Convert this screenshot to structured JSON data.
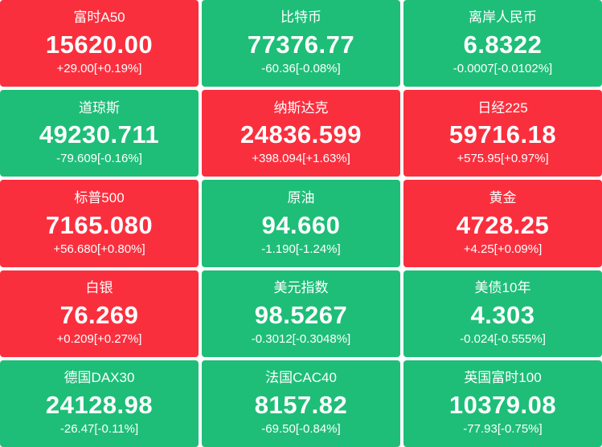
{
  "colors": {
    "up_background": "#fa2f3e",
    "down_background": "#1ebe78",
    "text": "#ffffff",
    "page_background": "#ffffff"
  },
  "board": {
    "columns": 3,
    "rows": 5
  },
  "tiles": [
    {
      "name": "富时A50",
      "value": "15620.00",
      "change": "+29.00[+0.19%]",
      "direction": "up"
    },
    {
      "name": "比特币",
      "value": "77376.77",
      "change": "-60.36[-0.08%]",
      "direction": "down"
    },
    {
      "name": "离岸人民币",
      "value": "6.8322",
      "change": "-0.0007[-0.0102%]",
      "direction": "down"
    },
    {
      "name": "道琼斯",
      "value": "49230.711",
      "change": "-79.609[-0.16%]",
      "direction": "down"
    },
    {
      "name": "纳斯达克",
      "value": "24836.599",
      "change": "+398.094[+1.63%]",
      "direction": "up"
    },
    {
      "name": "日经225",
      "value": "59716.18",
      "change": "+575.95[+0.97%]",
      "direction": "up"
    },
    {
      "name": "标普500",
      "value": "7165.080",
      "change": "+56.680[+0.80%]",
      "direction": "up"
    },
    {
      "name": "原油",
      "value": "94.660",
      "change": "-1.190[-1.24%]",
      "direction": "down"
    },
    {
      "name": "黄金",
      "value": "4728.25",
      "change": "+4.25[+0.09%]",
      "direction": "up"
    },
    {
      "name": "白银",
      "value": "76.269",
      "change": "+0.209[+0.27%]",
      "direction": "up"
    },
    {
      "name": "美元指数",
      "value": "98.5267",
      "change": "-0.3012[-0.3048%]",
      "direction": "down"
    },
    {
      "name": "美债10年",
      "value": "4.303",
      "change": "-0.024[-0.555%]",
      "direction": "down"
    },
    {
      "name": "德国DAX30",
      "value": "24128.98",
      "change": "-26.47[-0.11%]",
      "direction": "down"
    },
    {
      "name": "法国CAC40",
      "value": "8157.82",
      "change": "-69.50[-0.84%]",
      "direction": "down"
    },
    {
      "name": "英国富时100",
      "value": "10379.08",
      "change": "-77.93[-0.75%]",
      "direction": "down"
    }
  ]
}
